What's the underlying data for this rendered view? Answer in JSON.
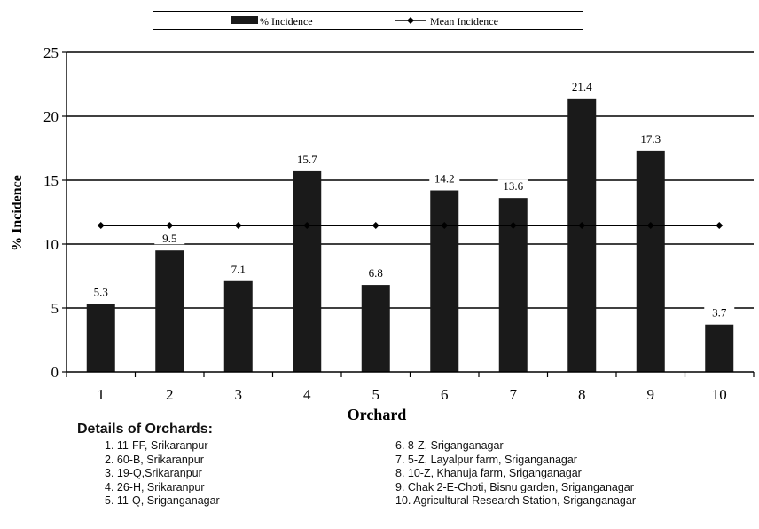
{
  "chart_data": {
    "type": "bar",
    "categories": [
      "1",
      "2",
      "3",
      "4",
      "5",
      "6",
      "7",
      "8",
      "9",
      "10"
    ],
    "series": [
      {
        "name": "% Incidence",
        "type": "bar",
        "values": [
          5.3,
          9.5,
          7.1,
          15.7,
          6.8,
          14.2,
          13.6,
          21.4,
          17.3,
          3.7
        ],
        "color": "#1a1a1a"
      },
      {
        "name": "Mean Incidence",
        "type": "line",
        "values": [
          11.46,
          11.46,
          11.46,
          11.46,
          11.46,
          11.46,
          11.46,
          11.46,
          11.46,
          11.46
        ],
        "color": "#000000",
        "marker": "diamond"
      }
    ],
    "data_labels": [
      "5.3",
      "9.5",
      "7.1",
      "15.7",
      "6.8",
      "14.2",
      "13.6",
      "21.4",
      "17.3",
      "3.7"
    ],
    "xlabel": "Orchard",
    "ylabel": "% Incidence",
    "ylim": [
      0,
      25
    ],
    "yticks": [
      0,
      5,
      10,
      15,
      20,
      25
    ],
    "grid": "horizontal",
    "legend_placement": "top"
  },
  "details": {
    "title": "Details of Orchards:",
    "left": [
      "1. 11-FF, Srikaranpur",
      "2. 60-B, Srikaranpur",
      "3. 19-Q,Srikaranpur",
      "4. 26-H, Srikaranpur",
      "5. 11-Q, Sriganganagar"
    ],
    "right": [
      "6. 8-Z, Sriganganagar",
      "7. 5-Z, Layalpur farm, Sriganganagar",
      "8. 10-Z, Khanuja farm, Sriganganagar",
      "9. Chak 2-E-Choti, Bisnu garden, Sriganganagar",
      "10. Agricultural Research Station, Sriganganagar"
    ]
  }
}
